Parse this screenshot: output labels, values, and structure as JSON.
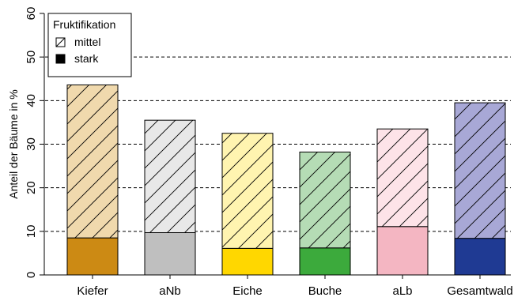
{
  "chart_data": {
    "type": "bar",
    "stacked": true,
    "categories": [
      "Kiefer",
      "aNb",
      "Eiche",
      "Buche",
      "aLb",
      "Gesamtwald"
    ],
    "series": [
      {
        "name": "stark",
        "pattern": "solid",
        "values": [
          8.5,
          9.7,
          6.1,
          6.2,
          11.1,
          8.4
        ]
      },
      {
        "name": "mittel",
        "pattern": "hatched",
        "values": [
          35.1,
          25.8,
          26.4,
          22.0,
          22.4,
          31.1
        ]
      }
    ],
    "colors": {
      "stark": [
        "#cc8a14",
        "#bfbfbf",
        "#ffd700",
        "#3caa3c",
        "#f4b6c2",
        "#1f3a93"
      ],
      "mittel": [
        "#f0d9ad",
        "#e8e8e8",
        "#fff4b0",
        "#b5dcb5",
        "#fde3e8",
        "#a8a8d6"
      ]
    },
    "ylabel": "Anteil der Bäume in %",
    "xlabel": "",
    "ylim": [
      0,
      60
    ],
    "yticks": [
      0,
      10,
      20,
      30,
      40,
      50,
      60
    ],
    "gridlines": [
      10,
      20,
      30,
      40,
      50
    ],
    "grid": "horizontal-dashed",
    "legend": {
      "title": "Fruktifikation",
      "position": "top-left",
      "items": [
        {
          "label": "mittel",
          "pattern": "hatched"
        },
        {
          "label": "stark",
          "pattern": "solid"
        }
      ]
    }
  }
}
